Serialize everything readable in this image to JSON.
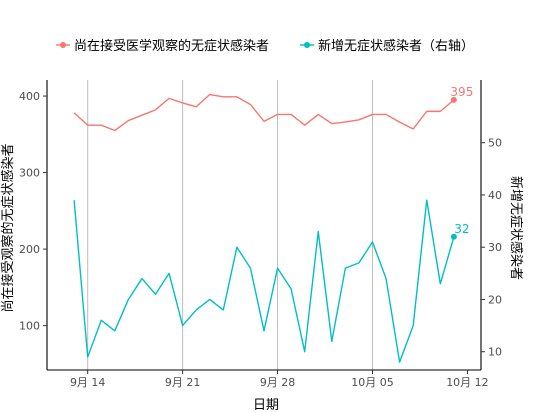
{
  "chart_data": {
    "type": "line",
    "x_label": "日期",
    "y_left_label": "尚在接受观察的无症状感染者",
    "y_right_label": "新增无症状感染者",
    "y_left_ticks": [
      100,
      200,
      300,
      400
    ],
    "y_left_lim": [
      42,
      421
    ],
    "y_right_ticks": [
      10,
      20,
      30,
      40,
      50
    ],
    "y_right_lim": [
      6.5,
      62
    ],
    "x_ticks": [
      {
        "date": "2020-09-14",
        "label": "9月 14"
      },
      {
        "date": "2020-09-21",
        "label": "9月 21"
      },
      {
        "date": "2020-09-28",
        "label": "9月 28"
      },
      {
        "date": "2020-10-05",
        "label": "10月 05"
      },
      {
        "date": "2020-10-12",
        "label": "10月 12"
      }
    ],
    "x_lim": [
      "2020-09-11",
      "2020-10-13"
    ],
    "grid": "vertical major lines",
    "legend_position": "top",
    "series": [
      {
        "name": "尚在接受医学观察的无症状感染者",
        "axis": "left",
        "color": "#F8766D",
        "end_label": "395",
        "points": [
          {
            "date": "2020-09-13",
            "value": 378
          },
          {
            "date": "2020-09-14",
            "value": 362
          },
          {
            "date": "2020-09-15",
            "value": 362
          },
          {
            "date": "2020-09-16",
            "value": 355
          },
          {
            "date": "2020-09-17",
            "value": 368
          },
          {
            "date": "2020-09-18",
            "value": 375
          },
          {
            "date": "2020-09-19",
            "value": 382
          },
          {
            "date": "2020-09-20",
            "value": 397
          },
          {
            "date": "2020-09-21",
            "value": 391
          },
          {
            "date": "2020-09-22",
            "value": 386
          },
          {
            "date": "2020-09-23",
            "value": 402
          },
          {
            "date": "2020-09-24",
            "value": 399
          },
          {
            "date": "2020-09-25",
            "value": 399
          },
          {
            "date": "2020-09-26",
            "value": 389
          },
          {
            "date": "2020-09-27",
            "value": 367
          },
          {
            "date": "2020-09-28",
            "value": 376
          },
          {
            "date": "2020-09-29",
            "value": 376
          },
          {
            "date": "2020-09-30",
            "value": 362
          },
          {
            "date": "2020-10-01",
            "value": 376
          },
          {
            "date": "2020-10-02",
            "value": 364
          },
          {
            "date": "2020-10-03",
            "value": 366
          },
          {
            "date": "2020-10-04",
            "value": 369
          },
          {
            "date": "2020-10-05",
            "value": 376
          },
          {
            "date": "2020-10-06",
            "value": 376
          },
          {
            "date": "2020-10-07",
            "value": 366
          },
          {
            "date": "2020-10-08",
            "value": 357
          },
          {
            "date": "2020-10-09",
            "value": 380
          },
          {
            "date": "2020-10-10",
            "value": 380
          },
          {
            "date": "2020-10-11",
            "value": 395
          }
        ]
      },
      {
        "name": "新增无症状感染者（右轴）",
        "axis": "right",
        "color": "#00BFC4",
        "end_label": "32",
        "points": [
          {
            "date": "2020-09-13",
            "value": 39
          },
          {
            "date": "2020-09-14",
            "value": 9
          },
          {
            "date": "2020-09-15",
            "value": 16
          },
          {
            "date": "2020-09-16",
            "value": 14
          },
          {
            "date": "2020-09-17",
            "value": 20
          },
          {
            "date": "2020-09-18",
            "value": 24
          },
          {
            "date": "2020-09-19",
            "value": 21
          },
          {
            "date": "2020-09-20",
            "value": 25
          },
          {
            "date": "2020-09-21",
            "value": 15
          },
          {
            "date": "2020-09-22",
            "value": 18
          },
          {
            "date": "2020-09-23",
            "value": 20
          },
          {
            "date": "2020-09-24",
            "value": 18
          },
          {
            "date": "2020-09-25",
            "value": 30
          },
          {
            "date": "2020-09-26",
            "value": 26
          },
          {
            "date": "2020-09-27",
            "value": 14
          },
          {
            "date": "2020-09-28",
            "value": 26
          },
          {
            "date": "2020-09-29",
            "value": 22
          },
          {
            "date": "2020-09-30",
            "value": 10
          },
          {
            "date": "2020-10-01",
            "value": 33
          },
          {
            "date": "2020-10-02",
            "value": 12
          },
          {
            "date": "2020-10-03",
            "value": 26
          },
          {
            "date": "2020-10-04",
            "value": 27
          },
          {
            "date": "2020-10-05",
            "value": 31
          },
          {
            "date": "2020-10-06",
            "value": 24
          },
          {
            "date": "2020-10-07",
            "value": 8
          },
          {
            "date": "2020-10-08",
            "value": 15
          },
          {
            "date": "2020-10-09",
            "value": 39
          },
          {
            "date": "2020-10-10",
            "value": 23
          },
          {
            "date": "2020-10-11",
            "value": 32
          }
        ]
      }
    ]
  }
}
